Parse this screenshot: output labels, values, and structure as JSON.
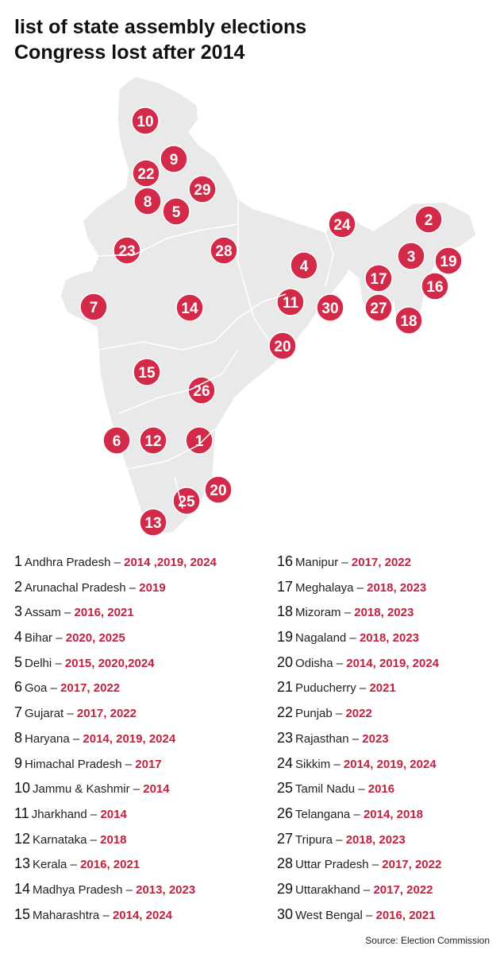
{
  "title_lines": [
    "list of state assembly elections",
    "Congress lost after 2014"
  ],
  "map": {
    "pin_color": "#d42a4a",
    "land_color": "#e8e8e8",
    "pins": [
      {
        "label": "10"
      },
      {
        "label": "9"
      },
      {
        "label": "22"
      },
      {
        "label": "29"
      },
      {
        "label": "8"
      },
      {
        "label": "5"
      },
      {
        "label": "24"
      },
      {
        "label": "2"
      },
      {
        "label": "23"
      },
      {
        "label": "28"
      },
      {
        "label": "4"
      },
      {
        "label": "3"
      },
      {
        "label": "19"
      },
      {
        "label": "17"
      },
      {
        "label": "16"
      },
      {
        "label": "7"
      },
      {
        "label": "14"
      },
      {
        "label": "11"
      },
      {
        "label": "30"
      },
      {
        "label": "27"
      },
      {
        "label": "18"
      },
      {
        "label": "20"
      },
      {
        "label": "15"
      },
      {
        "label": "26"
      },
      {
        "label": "6"
      },
      {
        "label": "12"
      },
      {
        "label": "1"
      },
      {
        "label": "20"
      },
      {
        "label": "25"
      },
      {
        "label": "13"
      }
    ]
  },
  "separator": " – ",
  "states_left": [
    {
      "num": "1",
      "state": "Andhra Pradesh",
      "years": "2014 ,2019, 2024"
    },
    {
      "num": "2",
      "state": "Arunachal Pradesh",
      "years": "2019"
    },
    {
      "num": "3",
      "state": "Assam",
      "years": "2016, 2021"
    },
    {
      "num": "4",
      "state": "Bihar",
      "years": "2020, 2025"
    },
    {
      "num": "5",
      "state": "Delhi",
      "years": "2015, 2020,2024"
    },
    {
      "num": "6",
      "state": "Goa",
      "years": "2017, 2022"
    },
    {
      "num": "7",
      "state": "Gujarat",
      "years": "2017, 2022"
    },
    {
      "num": "8",
      "state": "Haryana",
      "years": "2014, 2019, 2024"
    },
    {
      "num": "9",
      "state": "Himachal Pradesh",
      "years": "2017"
    },
    {
      "num": "10",
      "state": "Jammu & Kashmir",
      "years": "2014"
    },
    {
      "num": "11",
      "state": "Jharkhand",
      "years": "2014"
    },
    {
      "num": "12",
      "state": "Karnataka",
      "years": "2018"
    },
    {
      "num": "13",
      "state": "Kerala",
      "years": "2016, 2021"
    },
    {
      "num": "14",
      "state": "Madhya Pradesh",
      "years": "2013, 2023"
    },
    {
      "num": "15",
      "state": "Maharashtra",
      "years": "2014, 2024"
    }
  ],
  "states_right": [
    {
      "num": "16",
      "state": "Manipur",
      "years": "2017, 2022"
    },
    {
      "num": "17",
      "state": "Meghalaya",
      "years": "2018, 2023"
    },
    {
      "num": "18",
      "state": "Mizoram",
      "years": "2018, 2023"
    },
    {
      "num": "19",
      "state": "Nagaland",
      "years": "2018, 2023"
    },
    {
      "num": "20",
      "state": "Odisha",
      "years": "2014, 2019, 2024"
    },
    {
      "num": "21",
      "state": "Puducherry",
      "years": "2021"
    },
    {
      "num": "22",
      "state": "Punjab",
      "years": "2022"
    },
    {
      "num": "23",
      "state": "Rajasthan",
      "years": "2023"
    },
    {
      "num": "24",
      "state": "Sikkim",
      "years": "2014, 2019, 2024"
    },
    {
      "num": "25",
      "state": "Tamil Nadu",
      "years": "2016"
    },
    {
      "num": "26",
      "state": "Telangana",
      "years": "2014, 2018"
    },
    {
      "num": "27",
      "state": "Tripura",
      "years": "2018, 2023"
    },
    {
      "num": "28",
      "state": "Uttar Pradesh",
      "years": "2017, 2022"
    },
    {
      "num": "29",
      "state": "Uttarakhand",
      "years": "2017, 2022"
    },
    {
      "num": "30",
      "state": "West Bengal",
      "years": "2016, 2021"
    }
  ],
  "source": "Source: Election Commission"
}
